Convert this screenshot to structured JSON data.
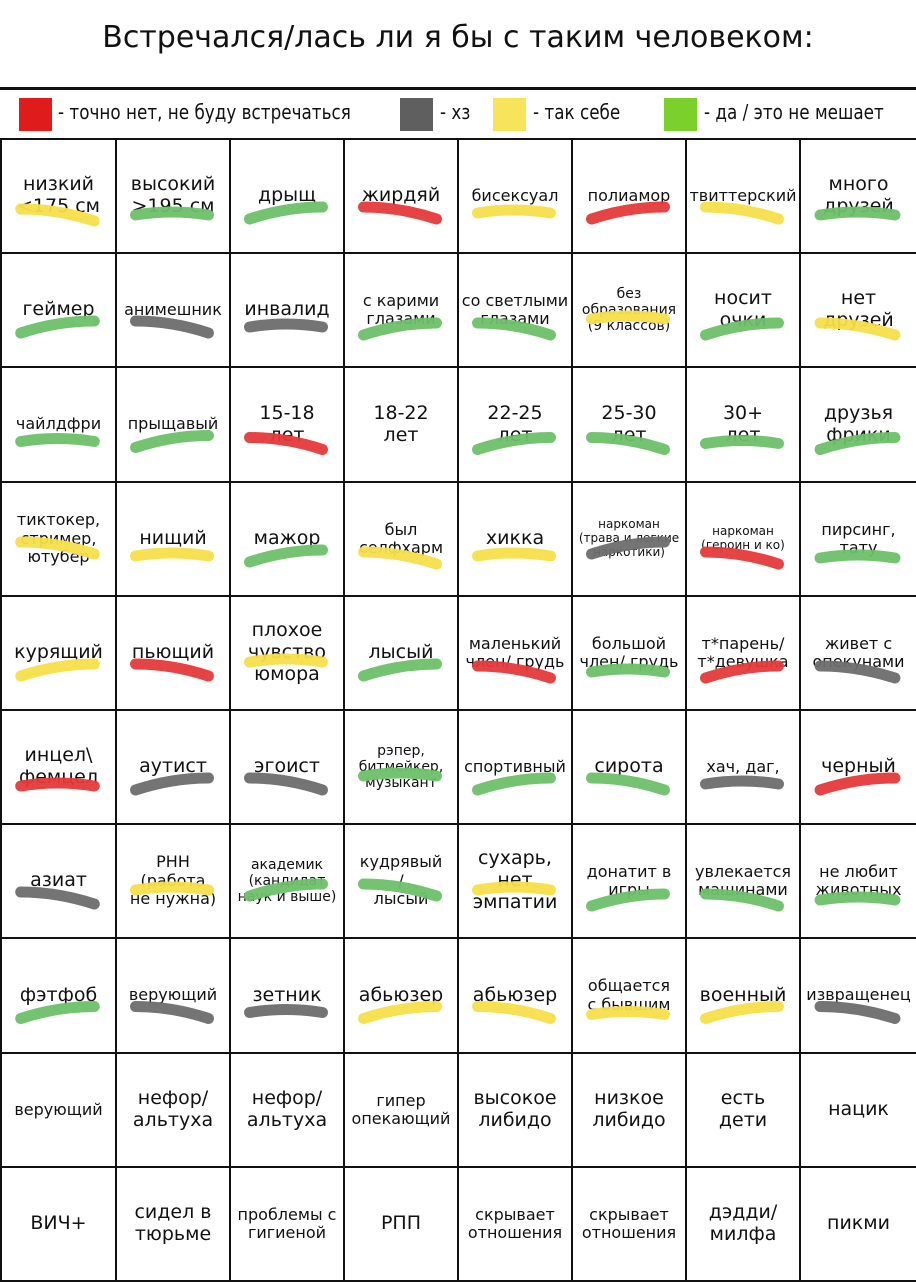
{
  "title": "Встречался/лась ли я бы с таким человеком:",
  "colors": {
    "red": "#e53a3a",
    "gray": "#6d6d6d",
    "yellow": "#f7df4a",
    "green": "#6cc069",
    "swatch_red": "#e01b1b",
    "swatch_gray": "#5f5f5f",
    "swatch_yellow": "#f8e45c",
    "swatch_green": "#7bd02b"
  },
  "legend": [
    {
      "color": "red",
      "label": "- точно нет, не буду встречаться"
    },
    {
      "color": "gray",
      "label": "- хз"
    },
    {
      "color": "yellow",
      "label": "- так себе"
    },
    {
      "color": "green",
      "label": "- да / это не мешает"
    }
  ],
  "rows": [
    [
      {
        "text": "низкий\n<175 см",
        "mark": "yellow"
      },
      {
        "text": "высокий\n>195 см",
        "mark": "green"
      },
      {
        "text": "дрыщ",
        "mark": "green"
      },
      {
        "text": "жирдяй",
        "mark": "red"
      },
      {
        "text": "бисексуал",
        "mark": "yellow"
      },
      {
        "text": "полиамор",
        "mark": "red"
      },
      {
        "text": "твиттерский",
        "mark": "yellow"
      },
      {
        "text": "много\nдрузей",
        "mark": "green"
      }
    ],
    [
      {
        "text": "геймер",
        "mark": "green"
      },
      {
        "text": "анимешник",
        "mark": "gray"
      },
      {
        "text": "инвалид",
        "mark": "gray"
      },
      {
        "text": "с карими\nглазами",
        "mark": "green"
      },
      {
        "text": "со светлыми\nглазами",
        "mark": "green"
      },
      {
        "text": "без\nобразования\n(9 классов)",
        "mark": "yellow"
      },
      {
        "text": "носит\nочки",
        "mark": "green"
      },
      {
        "text": "нет\nдрузей",
        "mark": "yellow"
      }
    ],
    [
      {
        "text": "чайлдфри",
        "mark": "green"
      },
      {
        "text": "прыщавый",
        "mark": "green"
      },
      {
        "text": "15-18\nлет",
        "mark": "red"
      },
      {
        "text": "18-22\nлет",
        "mark": ""
      },
      {
        "text": "22-25\nлет",
        "mark": "green"
      },
      {
        "text": "25-30\nлет",
        "mark": "green"
      },
      {
        "text": "30+\nлет",
        "mark": "green"
      },
      {
        "text": "друзья\nфрики",
        "mark": "green"
      }
    ],
    [
      {
        "text": "тиктокер,\nстример,\nютубер",
        "mark": "yellow"
      },
      {
        "text": "нищий",
        "mark": "yellow"
      },
      {
        "text": "мажор",
        "mark": "green"
      },
      {
        "text": "был\nселфхарм",
        "mark": "yellow"
      },
      {
        "text": "хикка",
        "mark": "yellow"
      },
      {
        "text": "наркоман\n(трава и легкие\nнаркотики)",
        "mark": "gray"
      },
      {
        "text": "наркоман\n(героин и ко)",
        "mark": "red"
      },
      {
        "text": "пирсинг,\nтату",
        "mark": "green"
      }
    ],
    [
      {
        "text": "курящий",
        "mark": "yellow"
      },
      {
        "text": "пьющий",
        "mark": "red"
      },
      {
        "text": "плохое\nчувство\nюмора",
        "mark": "yellow"
      },
      {
        "text": "лысый",
        "mark": "green"
      },
      {
        "text": "маленький\nчлен/ грудь",
        "mark": "red"
      },
      {
        "text": "большой\nчлен/ грудь",
        "mark": "green"
      },
      {
        "text": "т*парень/\nт*девушка",
        "mark": "red"
      },
      {
        "text": "живет с\nопекунами",
        "mark": "gray"
      }
    ],
    [
      {
        "text": "инцел\\\nфемцел",
        "mark": "red"
      },
      {
        "text": "аутист",
        "mark": "gray"
      },
      {
        "text": "эгоист",
        "mark": "gray"
      },
      {
        "text": "рэпер,\nбитмейкер,\nмузыкант",
        "mark": "green"
      },
      {
        "text": "спортивный",
        "mark": "green"
      },
      {
        "text": "сирота",
        "mark": "green"
      },
      {
        "text": "хач, даг,",
        "mark": "gray"
      },
      {
        "text": "черный",
        "mark": "red"
      }
    ],
    [
      {
        "text": "азиат",
        "mark": "gray"
      },
      {
        "text": "РНН\n(работа\nне нужна)",
        "mark": "yellow"
      },
      {
        "text": "академик\n(кандидат\nнаук и выше)",
        "mark": "green"
      },
      {
        "text": "кудрявый\n/\nлысый",
        "mark": "green"
      },
      {
        "text": "сухарь,\nнет\nэмпатии",
        "mark": "yellow"
      },
      {
        "text": "донатит в\nигры",
        "mark": "green"
      },
      {
        "text": "увлекается\nмашинами",
        "mark": "green"
      },
      {
        "text": "не любит\nживотных",
        "mark": "green"
      }
    ],
    [
      {
        "text": "фэтфоб",
        "mark": "green"
      },
      {
        "text": "верующий",
        "mark": "gray"
      },
      {
        "text": "зетник",
        "mark": "gray"
      },
      {
        "text": "абьюзер",
        "mark": "yellow"
      },
      {
        "text": "абьюзер",
        "mark": "yellow"
      },
      {
        "text": "общается\nс бывшим",
        "mark": "yellow"
      },
      {
        "text": "военный",
        "mark": "yellow"
      },
      {
        "text": "извращенец",
        "mark": "gray"
      }
    ],
    [
      {
        "text": "верующий",
        "mark": ""
      },
      {
        "text": "нефор/\nальтуха",
        "mark": ""
      },
      {
        "text": "нефор/\nальтуха",
        "mark": ""
      },
      {
        "text": "гипер\nопекающий",
        "mark": ""
      },
      {
        "text": "высокое\nлибидо",
        "mark": ""
      },
      {
        "text": "низкое\nлибидо",
        "mark": ""
      },
      {
        "text": "есть\nдети",
        "mark": ""
      },
      {
        "text": "нацик",
        "mark": ""
      }
    ],
    [
      {
        "text": "ВИЧ+",
        "mark": ""
      },
      {
        "text": "сидел в\nтюрьме",
        "mark": ""
      },
      {
        "text": "проблемы с\nгигиеной",
        "mark": ""
      },
      {
        "text": "РПП",
        "mark": ""
      },
      {
        "text": "скрывает\nотношения",
        "mark": ""
      },
      {
        "text": "скрывает\nотношения",
        "mark": ""
      },
      {
        "text": "дэдди/\nмилфа",
        "mark": ""
      },
      {
        "text": "пикми",
        "mark": ""
      }
    ]
  ]
}
